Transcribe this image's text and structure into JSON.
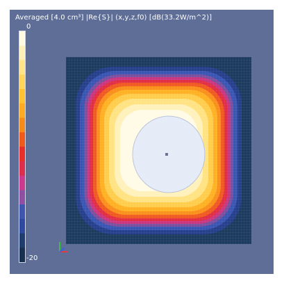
{
  "viewport": {
    "title": "Averaged [4.0 cm³] |Re{S}| (x,y,z,f0) [dB(33.2W/m^2)]"
  },
  "colorbar": {
    "max_label": "0",
    "min_label": "-20",
    "levels": [
      "#fffbe3",
      "#fff1b7",
      "#ffe48a",
      "#ffd55c",
      "#ffc332",
      "#ffac22",
      "#f78c1a",
      "#ef5a1d",
      "#e7302a",
      "#dc2f4d",
      "#cb3a8d",
      "#8f4fa3",
      "#3f56b0",
      "#2d4aa0",
      "#1e3c6e",
      "#18304f"
    ]
  },
  "icons": {
    "triad": "xyz-axes-icon"
  }
}
